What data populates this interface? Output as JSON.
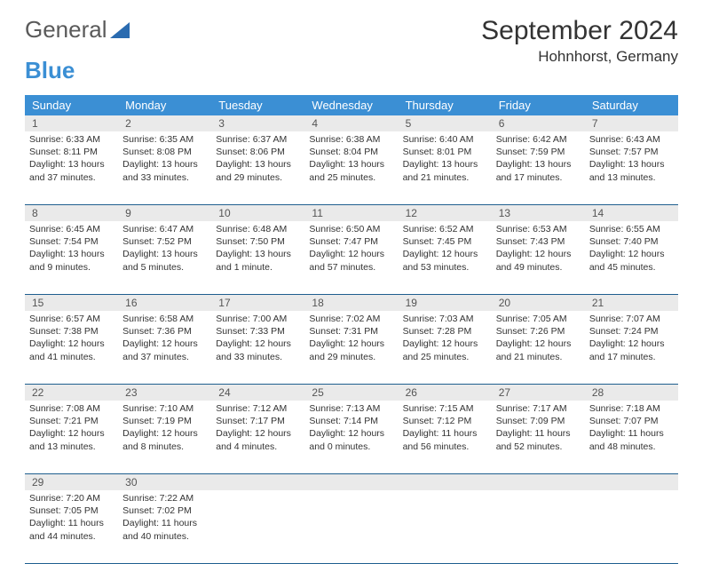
{
  "logo": {
    "text1": "General",
    "text2": "Blue"
  },
  "title": "September 2024",
  "location": "Hohnhorst, Germany",
  "day_names": [
    "Sunday",
    "Monday",
    "Tuesday",
    "Wednesday",
    "Thursday",
    "Friday",
    "Saturday"
  ],
  "colors": {
    "header_bg": "#3b8fd4",
    "daynum_bg": "#eaeaea",
    "week_border": "#1f5f8f",
    "text": "#333333",
    "logo_gray": "#5a5a5a",
    "logo_blue": "#3b8fd4"
  },
  "weeks": [
    {
      "nums": [
        "1",
        "2",
        "3",
        "4",
        "5",
        "6",
        "7"
      ],
      "cells": [
        {
          "sunrise": "Sunrise: 6:33 AM",
          "sunset": "Sunset: 8:11 PM",
          "daylight": "Daylight: 13 hours and 37 minutes."
        },
        {
          "sunrise": "Sunrise: 6:35 AM",
          "sunset": "Sunset: 8:08 PM",
          "daylight": "Daylight: 13 hours and 33 minutes."
        },
        {
          "sunrise": "Sunrise: 6:37 AM",
          "sunset": "Sunset: 8:06 PM",
          "daylight": "Daylight: 13 hours and 29 minutes."
        },
        {
          "sunrise": "Sunrise: 6:38 AM",
          "sunset": "Sunset: 8:04 PM",
          "daylight": "Daylight: 13 hours and 25 minutes."
        },
        {
          "sunrise": "Sunrise: 6:40 AM",
          "sunset": "Sunset: 8:01 PM",
          "daylight": "Daylight: 13 hours and 21 minutes."
        },
        {
          "sunrise": "Sunrise: 6:42 AM",
          "sunset": "Sunset: 7:59 PM",
          "daylight": "Daylight: 13 hours and 17 minutes."
        },
        {
          "sunrise": "Sunrise: 6:43 AM",
          "sunset": "Sunset: 7:57 PM",
          "daylight": "Daylight: 13 hours and 13 minutes."
        }
      ]
    },
    {
      "nums": [
        "8",
        "9",
        "10",
        "11",
        "12",
        "13",
        "14"
      ],
      "cells": [
        {
          "sunrise": "Sunrise: 6:45 AM",
          "sunset": "Sunset: 7:54 PM",
          "daylight": "Daylight: 13 hours and 9 minutes."
        },
        {
          "sunrise": "Sunrise: 6:47 AM",
          "sunset": "Sunset: 7:52 PM",
          "daylight": "Daylight: 13 hours and 5 minutes."
        },
        {
          "sunrise": "Sunrise: 6:48 AM",
          "sunset": "Sunset: 7:50 PM",
          "daylight": "Daylight: 13 hours and 1 minute."
        },
        {
          "sunrise": "Sunrise: 6:50 AM",
          "sunset": "Sunset: 7:47 PM",
          "daylight": "Daylight: 12 hours and 57 minutes."
        },
        {
          "sunrise": "Sunrise: 6:52 AM",
          "sunset": "Sunset: 7:45 PM",
          "daylight": "Daylight: 12 hours and 53 minutes."
        },
        {
          "sunrise": "Sunrise: 6:53 AM",
          "sunset": "Sunset: 7:43 PM",
          "daylight": "Daylight: 12 hours and 49 minutes."
        },
        {
          "sunrise": "Sunrise: 6:55 AM",
          "sunset": "Sunset: 7:40 PM",
          "daylight": "Daylight: 12 hours and 45 minutes."
        }
      ]
    },
    {
      "nums": [
        "15",
        "16",
        "17",
        "18",
        "19",
        "20",
        "21"
      ],
      "cells": [
        {
          "sunrise": "Sunrise: 6:57 AM",
          "sunset": "Sunset: 7:38 PM",
          "daylight": "Daylight: 12 hours and 41 minutes."
        },
        {
          "sunrise": "Sunrise: 6:58 AM",
          "sunset": "Sunset: 7:36 PM",
          "daylight": "Daylight: 12 hours and 37 minutes."
        },
        {
          "sunrise": "Sunrise: 7:00 AM",
          "sunset": "Sunset: 7:33 PM",
          "daylight": "Daylight: 12 hours and 33 minutes."
        },
        {
          "sunrise": "Sunrise: 7:02 AM",
          "sunset": "Sunset: 7:31 PM",
          "daylight": "Daylight: 12 hours and 29 minutes."
        },
        {
          "sunrise": "Sunrise: 7:03 AM",
          "sunset": "Sunset: 7:28 PM",
          "daylight": "Daylight: 12 hours and 25 minutes."
        },
        {
          "sunrise": "Sunrise: 7:05 AM",
          "sunset": "Sunset: 7:26 PM",
          "daylight": "Daylight: 12 hours and 21 minutes."
        },
        {
          "sunrise": "Sunrise: 7:07 AM",
          "sunset": "Sunset: 7:24 PM",
          "daylight": "Daylight: 12 hours and 17 minutes."
        }
      ]
    },
    {
      "nums": [
        "22",
        "23",
        "24",
        "25",
        "26",
        "27",
        "28"
      ],
      "cells": [
        {
          "sunrise": "Sunrise: 7:08 AM",
          "sunset": "Sunset: 7:21 PM",
          "daylight": "Daylight: 12 hours and 13 minutes."
        },
        {
          "sunrise": "Sunrise: 7:10 AM",
          "sunset": "Sunset: 7:19 PM",
          "daylight": "Daylight: 12 hours and 8 minutes."
        },
        {
          "sunrise": "Sunrise: 7:12 AM",
          "sunset": "Sunset: 7:17 PM",
          "daylight": "Daylight: 12 hours and 4 minutes."
        },
        {
          "sunrise": "Sunrise: 7:13 AM",
          "sunset": "Sunset: 7:14 PM",
          "daylight": "Daylight: 12 hours and 0 minutes."
        },
        {
          "sunrise": "Sunrise: 7:15 AM",
          "sunset": "Sunset: 7:12 PM",
          "daylight": "Daylight: 11 hours and 56 minutes."
        },
        {
          "sunrise": "Sunrise: 7:17 AM",
          "sunset": "Sunset: 7:09 PM",
          "daylight": "Daylight: 11 hours and 52 minutes."
        },
        {
          "sunrise": "Sunrise: 7:18 AM",
          "sunset": "Sunset: 7:07 PM",
          "daylight": "Daylight: 11 hours and 48 minutes."
        }
      ]
    },
    {
      "nums": [
        "29",
        "30",
        "",
        "",
        "",
        "",
        ""
      ],
      "cells": [
        {
          "sunrise": "Sunrise: 7:20 AM",
          "sunset": "Sunset: 7:05 PM",
          "daylight": "Daylight: 11 hours and 44 minutes."
        },
        {
          "sunrise": "Sunrise: 7:22 AM",
          "sunset": "Sunset: 7:02 PM",
          "daylight": "Daylight: 11 hours and 40 minutes."
        },
        null,
        null,
        null,
        null,
        null
      ]
    }
  ]
}
